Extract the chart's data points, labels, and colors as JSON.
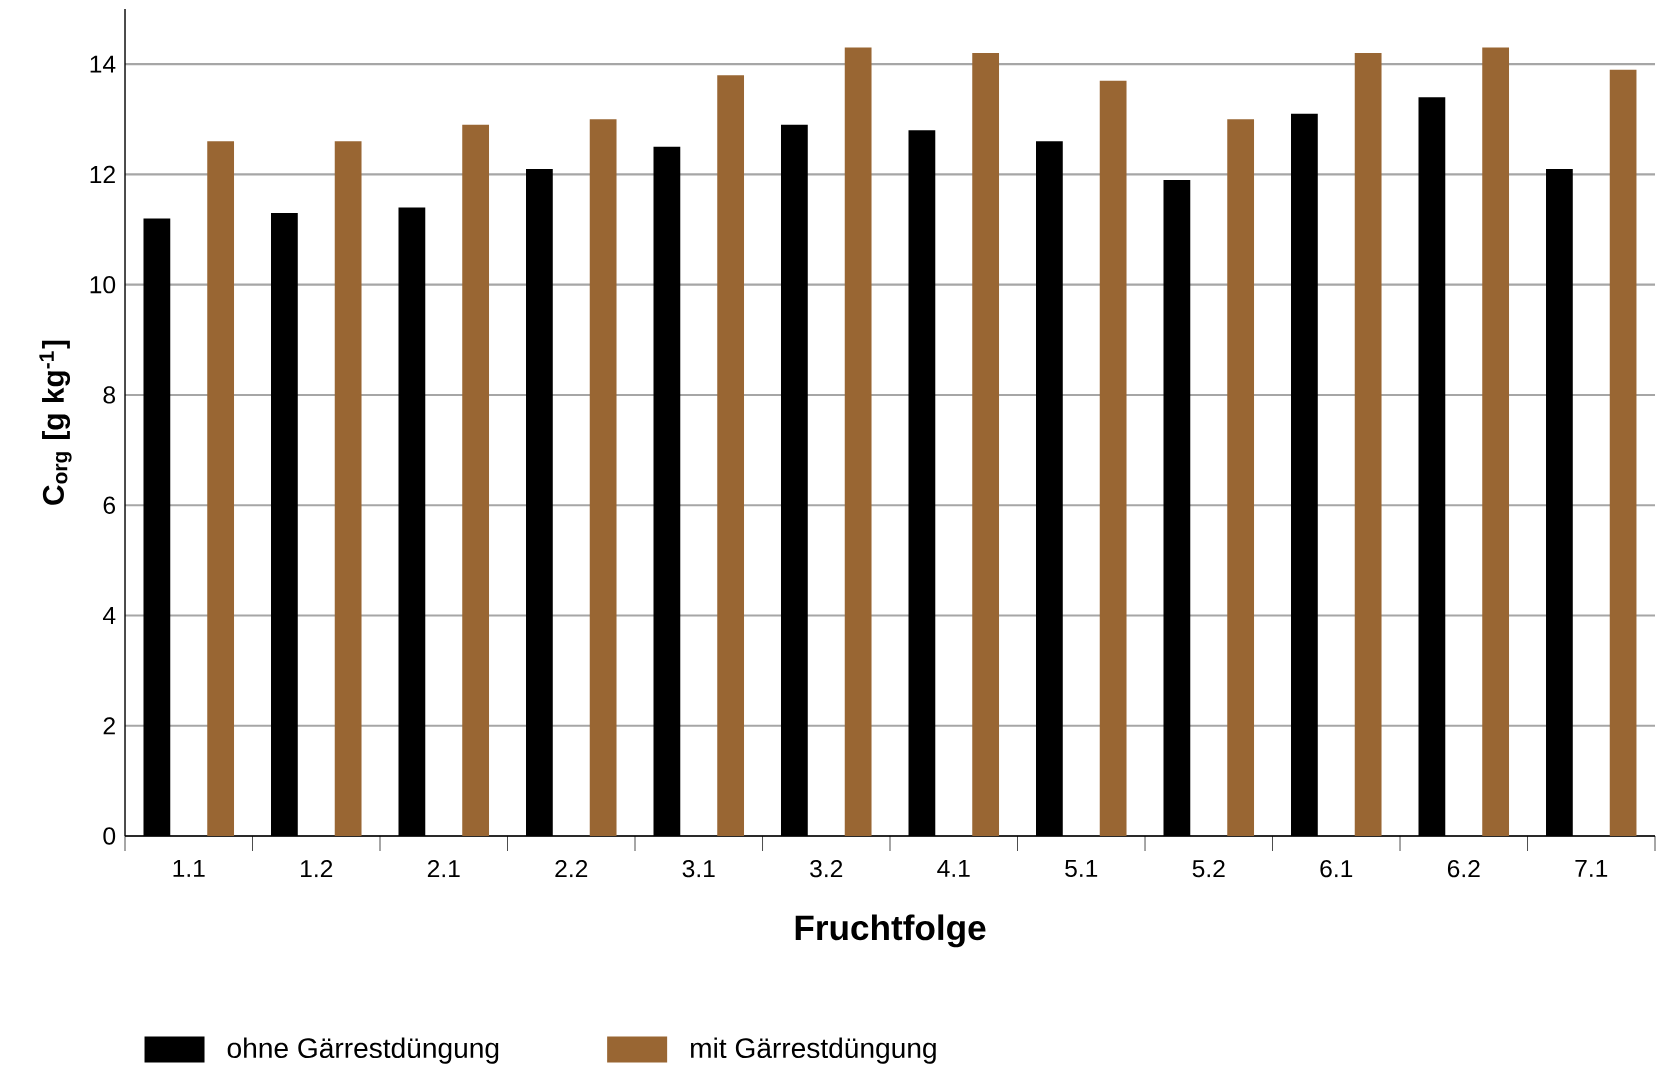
{
  "chart_data": {
    "type": "bar",
    "xlabel": "Fruchtfolge",
    "ylabel": "C$_{org}$ [g kg$^{-1}$]",
    "categories": [
      "1.1",
      "1.2",
      "2.1",
      "2.2",
      "3.1",
      "3.2",
      "4.1",
      "5.1",
      "5.2",
      "6.1",
      "6.2",
      "7.1"
    ],
    "series": [
      {
        "name": "ohne Gärrestdüngung",
        "color": "#000000",
        "values": [
          11.2,
          11.3,
          11.4,
          12.1,
          12.5,
          12.9,
          12.8,
          12.6,
          11.9,
          13.1,
          13.4,
          12.1
        ]
      },
      {
        "name": "mit Gärrestdüngung",
        "color": "#996633",
        "values": [
          12.6,
          12.6,
          12.9,
          13.0,
          13.8,
          14.3,
          14.2,
          13.7,
          13.0,
          14.2,
          14.3,
          13.9
        ]
      }
    ],
    "ylim": [
      0,
      15
    ],
    "yticks": [
      0,
      2,
      4,
      6,
      8,
      10,
      12,
      14
    ],
    "grid": "y",
    "legend": "bottom"
  }
}
